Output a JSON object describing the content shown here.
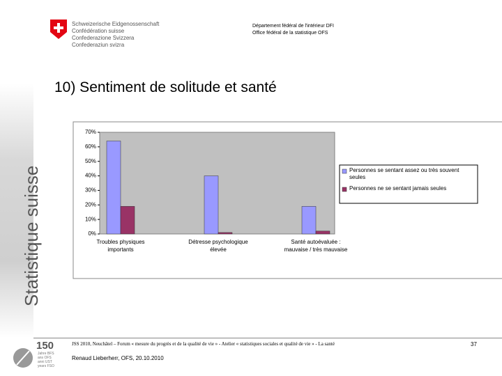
{
  "header": {
    "confederation": [
      "Schweizerische Eidgenossenschaft",
      "Confédération suisse",
      "Confederazione Svizzera",
      "Confederaziun svizra"
    ],
    "department": [
      "Département fédéral de l'intérieur DFI",
      "Office fédéral de la statistique OFS"
    ]
  },
  "sidebar": "Statistique suisse",
  "slide_title": "10) Sentiment de solitude et santé",
  "chart_data": {
    "type": "bar",
    "categories": [
      "Troubles physiques importants",
      "Détresse psychologique élevée",
      "Santé autoévaluée : mauvaise / très mauvaise"
    ],
    "series": [
      {
        "name": "Personnes se sentant assez ou très souvent seules",
        "color": "#9999ff",
        "values": [
          64,
          40,
          19
        ]
      },
      {
        "name": "Personnes ne se sentant jamais seules",
        "color": "#993366",
        "values": [
          19,
          1,
          2
        ]
      }
    ],
    "ylim": [
      0,
      70
    ],
    "yticks": [
      {
        "value": 0,
        "label": "0%"
      },
      {
        "value": 10,
        "label": "10%"
      },
      {
        "value": 20,
        "label": "20%"
      },
      {
        "value": 30,
        "label": "30%"
      },
      {
        "value": 40,
        "label": "40%"
      },
      {
        "value": 50,
        "label": "50%"
      },
      {
        "value": 60,
        "label": "60%"
      },
      {
        "value": 70,
        "label": "70%"
      }
    ],
    "grid": false,
    "legend": "right"
  },
  "footer": {
    "event": "JSS 2010, Neuchâtel – Forum « mesure du progrès et de la qualité de vie » - Atelier « statistiques sociales et qualité de vie » - La santé",
    "author": "Renaud Lieberherr, OFS, 20.10.2010",
    "page": "37",
    "logo_number": "150",
    "logo_lines": [
      "Jahre BFS",
      "ans OFS",
      "anni UST",
      "years FSO"
    ]
  }
}
